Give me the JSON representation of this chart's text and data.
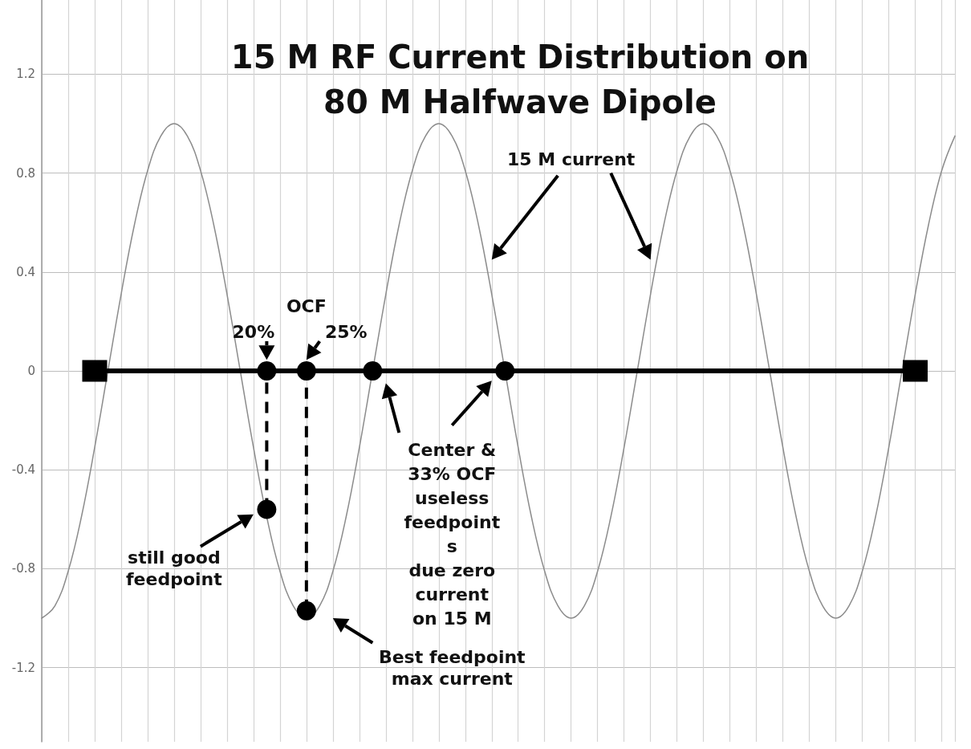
{
  "chart_data": {
    "type": "line",
    "title": "15 M RF Current Distribution on\n80 M Halfwave Dipole",
    "annotations": [
      "15 M current",
      "OCF",
      "20%",
      "25%",
      "Center &\n33% OCF\nuseless\nfeedpoint\ns\ndue zero\ncurrent\non 15 M",
      "still good\nfeedpoint",
      "Best feedpoint\nmax current"
    ],
    "categories": [
      null,
      null,
      null,
      null,
      null,
      null,
      null,
      null,
      null,
      null,
      null,
      null,
      null,
      null,
      null,
      null,
      null,
      null,
      null,
      null,
      null,
      null,
      null,
      null,
      null,
      null,
      null,
      null,
      null,
      null,
      null,
      null,
      null,
      null,
      null,
      null,
      null,
      null,
      null,
      null,
      null,
      null,
      null,
      null,
      null,
      null,
      null,
      null,
      null,
      null,
      null,
      null,
      null,
      null,
      null,
      null,
      null,
      null,
      null,
      null,
      null,
      null,
      null,
      null,
      null,
      null,
      null,
      null,
      null,
      null
    ],
    "series": [
      {
        "color": "#8c8c8c",
        "marker": "none",
        "values": [
          -1,
          -0.95,
          -0.81,
          -0.59,
          -0.31,
          0,
          0.31,
          0.59,
          0.81,
          0.95,
          1,
          0.95,
          0.81,
          0.59,
          0.31,
          0,
          -0.31,
          -0.59,
          -0.81,
          -0.95,
          -1,
          -0.95,
          -0.81,
          -0.59,
          -0.31,
          0,
          0.31,
          0.59,
          0.81,
          0.95,
          1,
          0.95,
          0.81,
          0.59,
          0.31,
          0,
          -0.31,
          -0.59,
          -0.81,
          -0.95,
          -1,
          -0.95,
          -0.81,
          -0.59,
          -0.31,
          0,
          0.31,
          0.59,
          0.81,
          0.95,
          1,
          0.95,
          0.81,
          0.59,
          0.31,
          0,
          -0.31,
          -0.59,
          -0.81,
          -0.95,
          -1,
          -0.95,
          -0.81,
          -0.59,
          -0.31,
          0,
          0.31,
          0.59,
          0.81,
          0.95
        ]
      },
      {
        "color": "#000000",
        "marker": "none",
        "values": [
          null,
          null,
          null,
          null,
          null,
          0,
          0,
          0,
          0,
          0,
          0,
          0,
          0,
          0,
          0,
          0,
          0,
          0,
          0,
          0,
          0,
          0,
          0,
          0,
          0,
          0,
          0,
          0,
          0,
          0,
          0,
          0,
          0,
          0,
          0,
          0,
          0,
          0,
          0,
          0,
          0,
          0,
          0,
          0,
          0,
          0,
          0,
          0,
          0,
          0,
          0,
          0,
          0,
          0,
          0,
          0,
          0,
          0,
          0,
          0,
          0,
          0,
          0,
          0,
          0,
          0,
          null,
          null,
          null,
          null
        ]
      },
      {
        "type": "scatter",
        "color": "#000000",
        "marker": "square",
        "values": [
          null,
          null,
          null,
          null,
          0,
          null,
          null,
          null,
          null,
          null,
          null,
          null,
          null,
          null,
          null,
          null,
          null,
          null,
          null,
          null,
          null,
          null,
          null,
          null,
          null,
          null,
          null,
          null,
          null,
          null,
          null,
          null,
          null,
          null,
          null,
          null,
          null,
          null,
          null,
          null,
          null,
          null,
          null,
          null,
          null,
          null,
          null,
          null,
          null,
          null,
          null,
          null,
          null,
          null,
          null,
          null,
          null,
          null,
          null,
          null,
          null,
          null,
          null,
          null,
          null,
          null,
          0,
          null,
          null,
          null
        ]
      },
      {
        "type": "scatter",
        "color": "#000000",
        "marker": "circle",
        "values": [
          null,
          null,
          null,
          null,
          null,
          null,
          null,
          null,
          null,
          null,
          null,
          null,
          null,
          null,
          null,
          null,
          null,
          0,
          null,
          null,
          0,
          null,
          null,
          null,
          null,
          0,
          null,
          null,
          null,
          null,
          null,
          null,
          null,
          null,
          null,
          0,
          null,
          null,
          null,
          null,
          null,
          null,
          null,
          null,
          null,
          null,
          null,
          null,
          null,
          null,
          null,
          null,
          null,
          null,
          null,
          null,
          null,
          null,
          null,
          null,
          null,
          null,
          null,
          null,
          null,
          null,
          null,
          null,
          null,
          null
        ]
      },
      {
        "type": "scatter",
        "color": "#000000",
        "marker": "circle",
        "values": [
          null,
          null,
          null,
          null,
          null,
          null,
          null,
          null,
          null,
          null,
          null,
          null,
          null,
          null,
          null,
          null,
          null,
          -0.56,
          null,
          null,
          -0.97,
          null,
          null,
          null,
          null,
          null,
          null,
          null,
          null,
          null,
          null,
          null,
          null,
          null,
          null,
          null,
          null,
          null,
          null,
          null,
          null,
          null,
          null,
          null,
          null,
          null,
          null,
          null,
          null,
          null,
          null,
          null,
          null,
          null,
          null,
          null,
          null,
          null,
          null,
          null,
          null,
          null,
          null,
          null,
          null,
          null,
          null,
          null,
          null,
          null
        ]
      }
    ],
    "ylim": [
      -1.5,
      1.5
    ],
    "yticks": [
      -1.2,
      -0.8,
      -0.4,
      0,
      0.4,
      0.8,
      1.2
    ],
    "grid": true,
    "tick_labels": "y"
  }
}
